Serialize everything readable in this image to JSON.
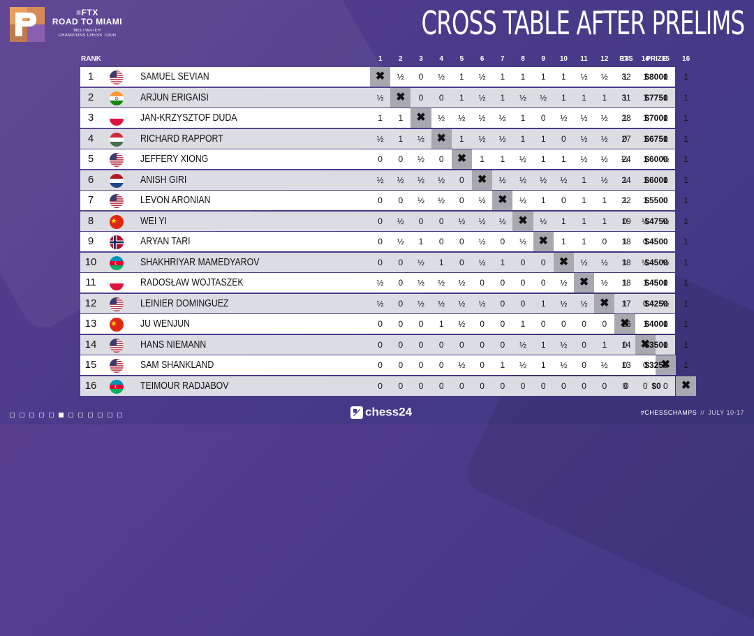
{
  "brand": {
    "line1": "FTX",
    "line2": "ROAD TO MIAMI",
    "line3": "MELTWATER",
    "line4": "CHAMPIONS CHESS TOUR"
  },
  "title": "CROSS TABLE AFTER PRELIMS",
  "headers": {
    "rank": "RANK",
    "rounds": [
      "1",
      "2",
      "3",
      "4",
      "5",
      "6",
      "7",
      "8",
      "9",
      "10",
      "11",
      "12",
      "13",
      "14",
      "15",
      "16"
    ],
    "pts": "PTS",
    "prize": "PRIZE"
  },
  "colors": {
    "row_odd": "#ffffff",
    "row_even": "#dcdde3",
    "x_cell": "#a8a9b0",
    "background": "#4a3a8a"
  },
  "players": [
    {
      "rank": "1",
      "flag": "usa",
      "name": "SAMUEL SEVIAN",
      "results": [
        "✖",
        "½",
        "0",
        "½",
        "1",
        "½",
        "1",
        "1",
        "1",
        "1",
        "½",
        "½",
        "1",
        "1",
        "1",
        "1"
      ],
      "pts": "32",
      "prize": "$8000"
    },
    {
      "rank": "2",
      "flag": "india",
      "name": "ARJUN ERIGAISI",
      "results": [
        "½",
        "✖",
        "0",
        "0",
        "1",
        "½",
        "1",
        "½",
        "½",
        "1",
        "1",
        "1",
        "1",
        "1",
        "1",
        "1"
      ],
      "pts": "31",
      "prize": "$7750"
    },
    {
      "rank": "3",
      "flag": "poland",
      "name": "JAN-KRZYSZTOF DUDA",
      "results": [
        "1",
        "1",
        "✖",
        "½",
        "½",
        "½",
        "½",
        "1",
        "0",
        "½",
        "½",
        "½",
        "1",
        "1",
        "1",
        "1"
      ],
      "pts": "28",
      "prize": "$7000"
    },
    {
      "rank": "4",
      "flag": "hungary",
      "name": "RICHARD RAPPORT",
      "results": [
        "½",
        "1",
        "½",
        "✖",
        "1",
        "½",
        "½",
        "1",
        "1",
        "0",
        "½",
        "½",
        "0",
        "1",
        "1",
        "1"
      ],
      "pts": "27",
      "prize": "$6750"
    },
    {
      "rank": "5",
      "flag": "usa",
      "name": "JEFFERY XIONG",
      "results": [
        "0",
        "0",
        "½",
        "0",
        "✖",
        "1",
        "1",
        "½",
        "1",
        "1",
        "½",
        "½",
        "½",
        "1",
        "½",
        "1"
      ],
      "pts": "24",
      "prize": "$6000"
    },
    {
      "rank": "6",
      "flag": "netherlands",
      "name": "ANISH GIRI",
      "results": [
        "½",
        "½",
        "½",
        "½",
        "0",
        "✖",
        "½",
        "½",
        "½",
        "½",
        "1",
        "½",
        "1",
        "1",
        "1",
        "1"
      ],
      "pts": "24",
      "prize": "$6000"
    },
    {
      "rank": "7",
      "flag": "usa",
      "name": "LEVON ARONIAN",
      "results": [
        "0",
        "0",
        "½",
        "½",
        "0",
        "½",
        "✖",
        "½",
        "1",
        "0",
        "1",
        "1",
        "1",
        "1",
        "0",
        "1"
      ],
      "pts": "22",
      "prize": "$5500"
    },
    {
      "rank": "8",
      "flag": "china",
      "name": "WEI YI",
      "results": [
        "0",
        "½",
        "0",
        "0",
        "½",
        "½",
        "½",
        "✖",
        "½",
        "1",
        "1",
        "1",
        "0",
        "½",
        "½",
        "1"
      ],
      "pts": "19",
      "prize": "$4750"
    },
    {
      "rank": "9",
      "flag": "norway",
      "name": "ARYAN TARI",
      "results": [
        "0",
        "½",
        "1",
        "0",
        "0",
        "½",
        "0",
        "½",
        "✖",
        "1",
        "1",
        "0",
        "1",
        "0",
        "0",
        "1"
      ],
      "pts": "18",
      "prize": "$4500"
    },
    {
      "rank": "10",
      "flag": "azerbaijan",
      "name": "SHAKHRIYAR MAMEDYAROV",
      "results": [
        "0",
        "0",
        "½",
        "1",
        "0",
        "½",
        "1",
        "0",
        "0",
        "✖",
        "½",
        "½",
        "1",
        "½",
        "½",
        "1"
      ],
      "pts": "18",
      "prize": "$4500"
    },
    {
      "rank": "11",
      "flag": "poland",
      "name": "RADOSŁAW WOJTASZEK",
      "results": [
        "½",
        "0",
        "½",
        "½",
        "½",
        "0",
        "0",
        "0",
        "0",
        "½",
        "✖",
        "½",
        "1",
        "1",
        "1",
        "1"
      ],
      "pts": "18",
      "prize": "$4500"
    },
    {
      "rank": "12",
      "flag": "usa",
      "name": "LEINIER DOMINGUEZ",
      "results": [
        "½",
        "0",
        "½",
        "½",
        "½",
        "½",
        "0",
        "0",
        "1",
        "½",
        "½",
        "✖",
        "1",
        "0",
        "½",
        "1"
      ],
      "pts": "17",
      "prize": "$4250"
    },
    {
      "rank": "13",
      "flag": "china",
      "name": "JU WENJUN",
      "results": [
        "0",
        "0",
        "0",
        "1",
        "½",
        "0",
        "0",
        "1",
        "0",
        "0",
        "0",
        "0",
        "✖",
        "1",
        "1",
        "1"
      ],
      "pts": "16",
      "prize": "$4000"
    },
    {
      "rank": "14",
      "flag": "usa",
      "name": "HANS NIEMANN",
      "results": [
        "0",
        "0",
        "0",
        "0",
        "0",
        "0",
        "0",
        "½",
        "1",
        "½",
        "0",
        "1",
        "0",
        "✖",
        "1",
        "1"
      ],
      "pts": "14",
      "prize": "$3500"
    },
    {
      "rank": "15",
      "flag": "usa",
      "name": "SAM SHANKLAND",
      "results": [
        "0",
        "0",
        "0",
        "0",
        "½",
        "0",
        "1",
        "½",
        "1",
        "½",
        "0",
        "½",
        "0",
        "0",
        "✖",
        "1"
      ],
      "pts": "13",
      "prize": "$3250"
    },
    {
      "rank": "16",
      "flag": "azerbaijan",
      "name": "TEIMOUR RADJABOV",
      "results": [
        "0",
        "0",
        "0",
        "0",
        "0",
        "0",
        "0",
        "0",
        "0",
        "0",
        "0",
        "0",
        "0",
        "0",
        "0",
        "✖"
      ],
      "pts": "0",
      "prize": "$0"
    }
  ],
  "footer": {
    "brand": "chess24",
    "hashtag": "#CHESSCHAMPS",
    "separator": "//",
    "dates": "JULY 10-17"
  }
}
